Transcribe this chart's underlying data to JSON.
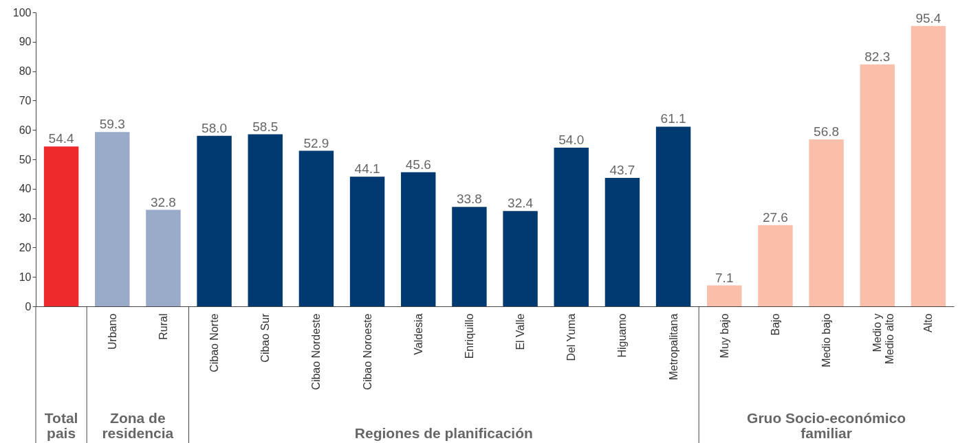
{
  "chart_data": {
    "type": "bar",
    "categories": [
      null,
      "Urbano",
      "Rural",
      "Cibao Norte",
      "Cibao Sur",
      "Cibao Nordeste",
      "Cibao Noroeste",
      "Valdesia",
      "Enriquillo",
      "El Valle",
      "Del Yuma",
      "Higuamo",
      "Metropalitana",
      "Muy bajo",
      "Bajo",
      "Medio bajo",
      "Medio y\nMedio alto",
      "Alto"
    ],
    "values": [
      54.4,
      59.3,
      32.8,
      58.0,
      58.5,
      52.9,
      44.1,
      45.6,
      33.8,
      32.4,
      54.0,
      43.7,
      61.1,
      7.1,
      27.6,
      56.8,
      82.3,
      95.4
    ],
    "colors": [
      "#ee2a2f",
      "#9aabc9",
      "#9aabc9",
      "#003a70",
      "#003a70",
      "#003a70",
      "#003a70",
      "#003a70",
      "#003a70",
      "#003a70",
      "#003a70",
      "#003a70",
      "#003a70",
      "#f9bfaa",
      "#f9bfaa",
      "#f9bfaa",
      "#f9bfaa",
      "#f9bfaa"
    ],
    "ylim": [
      0,
      100
    ],
    "yticks": [
      0,
      10,
      20,
      30,
      40,
      50,
      60,
      70,
      80,
      90,
      100
    ],
    "value_labels": [
      "54.4",
      "59.3",
      "32.8",
      "58.0",
      "58.5",
      "52.9",
      "44.1",
      "45.6",
      "33.8",
      "32.4",
      "54.0",
      "43.7",
      "61.1",
      "7.1",
      "27.6",
      "56.8",
      "82.3",
      "95.4"
    ],
    "grid": false,
    "annotations": [
      "Total\npais",
      "Zona de\nresidencia",
      "Regiones de planificación",
      "Gruo Socio-económico\nfamiliar"
    ]
  }
}
